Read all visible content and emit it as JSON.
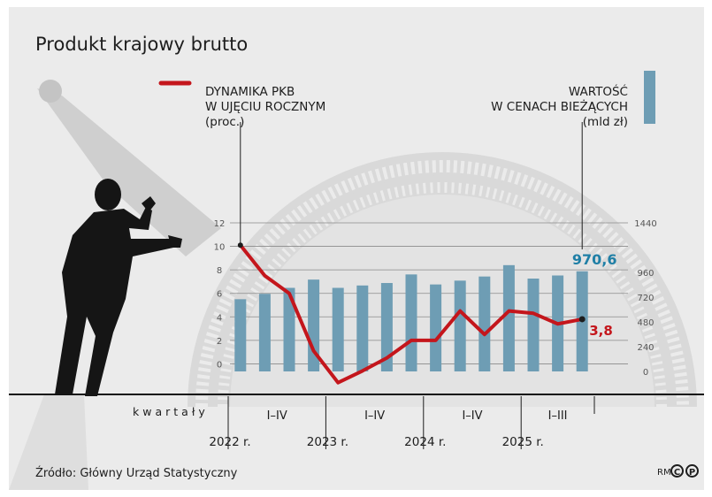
{
  "title": "Produkt krajowy brutto",
  "legend": {
    "line_label_1": "DYNAMIKA PKB",
    "line_label_2": "W UJĘCIU ROCZNYM",
    "line_label_3": "(proc.)",
    "bar_label_1": "WARTOŚĆ",
    "bar_label_2": "W CENACH BIEŻĄCYCH",
    "bar_label_3": "(mld zł)"
  },
  "source": "Źródło: Główny Urząd Statystyczny",
  "credit": "RM",
  "credit_c": "C",
  "credit_p": "P",
  "colors": {
    "line": "#c4161c",
    "bars": "#6e9db4",
    "last_bar_label": "#1f7fa6"
  },
  "chart_data": {
    "type": "bar+line",
    "x_axis_label": "kwartały",
    "quarters": [
      "2022-Q1",
      "2022-Q2",
      "2022-Q3",
      "2022-Q4",
      "2023-Q1",
      "2023-Q2",
      "2023-Q3",
      "2023-Q4",
      "2024-Q1",
      "2024-Q2",
      "2024-Q3",
      "2024-Q4",
      "2025-Q1",
      "2025-Q2",
      "2025-Q3"
    ],
    "year_groups": [
      {
        "range": "I–IV",
        "year": "2022 r."
      },
      {
        "range": "I–IV",
        "year": "2023 r."
      },
      {
        "range": "I–IV",
        "year": "2024 r."
      },
      {
        "range": "I–III",
        "year": "2025 r."
      }
    ],
    "series": [
      {
        "name": "WARTOŚĆ W CENACH BIEŻĄCYCH (mld zł)",
        "type": "bar",
        "axis": "right",
        "values": [
          700,
          752,
          810,
          890,
          810,
          833,
          857,
          940,
          843,
          880,
          920,
          1030,
          900,
          930,
          970.6
        ]
      },
      {
        "name": "DYNAMIKA PKB W UJĘCIU ROCZNYM (proc.)",
        "type": "line",
        "axis": "left",
        "values": [
          10.1,
          7.5,
          6.0,
          1.1,
          -1.6,
          -0.6,
          0.5,
          2.0,
          2.0,
          4.5,
          2.5,
          4.5,
          4.3,
          3.4,
          3.8
        ]
      }
    ],
    "left_axis": {
      "ticks": [
        0,
        2,
        4,
        6,
        8,
        10,
        12
      ],
      "ylim": [
        -2,
        12
      ]
    },
    "right_axis": {
      "ticks": [
        0,
        240,
        480,
        720,
        960,
        1440
      ],
      "ylim": [
        0,
        1440
      ]
    },
    "annotations": {
      "last_bar_value": "970,6",
      "last_line_value": "3,8"
    },
    "grid": true
  }
}
